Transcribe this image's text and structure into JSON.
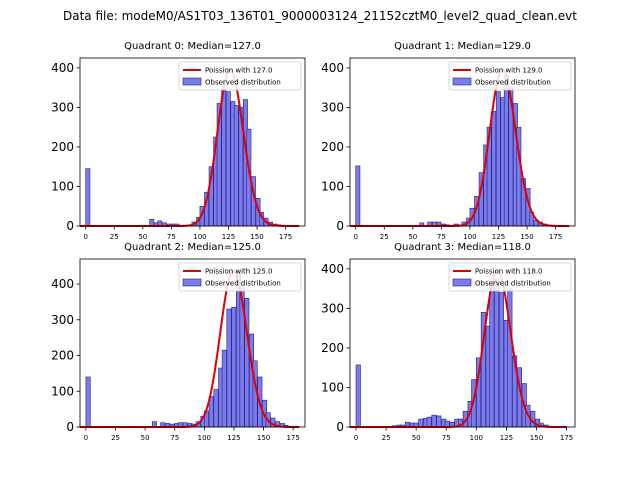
{
  "suptitle": "Data file: modeM0/AS1T03_136T01_9000003124_21152cztM0_level2_quad_clean.evt",
  "colors": {
    "bar_fill": "#7b7bea",
    "bar_edge": "#1f1f8c",
    "poisson_line": "#e00000",
    "axis": "#000000",
    "background": "#ffffff"
  },
  "chart_data": [
    {
      "type": "bar",
      "title": "Quadrant 0: Median=127.0",
      "median": 127.0,
      "xlim": [
        -5,
        192
      ],
      "ylim": [
        0,
        425
      ],
      "xticks": [
        0,
        25,
        50,
        75,
        100,
        125,
        150,
        175
      ],
      "yticks": [
        0,
        100,
        200,
        300,
        400
      ],
      "bin_width": 3.7,
      "bins": [
        [
          0,
          145
        ],
        [
          56,
          17
        ],
        [
          60,
          8
        ],
        [
          63,
          13
        ],
        [
          67,
          8
        ],
        [
          71,
          5
        ],
        [
          75,
          5
        ],
        [
          78,
          5
        ],
        [
          82,
          2
        ],
        [
          86,
          2
        ],
        [
          89,
          3
        ],
        [
          93,
          10
        ],
        [
          97,
          22
        ],
        [
          100,
          50
        ],
        [
          104,
          85
        ],
        [
          108,
          150
        ],
        [
          112,
          225
        ],
        [
          115,
          310
        ],
        [
          119,
          345
        ],
        [
          123,
          340
        ],
        [
          127,
          315
        ],
        [
          130,
          305
        ],
        [
          134,
          300
        ],
        [
          138,
          320
        ],
        [
          141,
          245
        ],
        [
          145,
          125
        ],
        [
          149,
          70
        ],
        [
          152,
          35
        ],
        [
          156,
          20
        ],
        [
          160,
          10
        ],
        [
          164,
          5
        ],
        [
          167,
          3
        ],
        [
          171,
          2
        ]
      ],
      "curve_range": [
        -5,
        187
      ],
      "legend": {
        "line": "Poission with 127.0",
        "bar": "Observed distribution"
      }
    },
    {
      "type": "bar",
      "title": "Quadrant 1: Median=129.0",
      "median": 129.0,
      "xlim": [
        -5,
        192
      ],
      "ylim": [
        0,
        425
      ],
      "xticks": [
        0,
        25,
        50,
        75,
        100,
        125,
        150,
        175
      ],
      "yticks": [
        0,
        100,
        200,
        300,
        400
      ],
      "bin_width": 3.7,
      "bins": [
        [
          0,
          152
        ],
        [
          56,
          8
        ],
        [
          63,
          10
        ],
        [
          67,
          10
        ],
        [
          71,
          10
        ],
        [
          75,
          5
        ],
        [
          78,
          3
        ],
        [
          82,
          2
        ],
        [
          86,
          5
        ],
        [
          89,
          3
        ],
        [
          93,
          10
        ],
        [
          97,
          20
        ],
        [
          100,
          45
        ],
        [
          104,
          75
        ],
        [
          108,
          135
        ],
        [
          112,
          205
        ],
        [
          115,
          250
        ],
        [
          119,
          290
        ],
        [
          123,
          340
        ],
        [
          127,
          325
        ],
        [
          130,
          380
        ],
        [
          134,
          350
        ],
        [
          138,
          310
        ],
        [
          141,
          250
        ],
        [
          145,
          120
        ],
        [
          149,
          95
        ],
        [
          152,
          35
        ],
        [
          156,
          15
        ],
        [
          160,
          10
        ],
        [
          164,
          5
        ],
        [
          167,
          3
        ],
        [
          171,
          2
        ],
        [
          175,
          1
        ]
      ],
      "curve_range": [
        -5,
        187
      ],
      "legend": {
        "line": "Poission with 129.0",
        "bar": "Observed distribution"
      }
    },
    {
      "type": "bar",
      "title": "Quadrant 2: Median=125.0",
      "median": 125.0,
      "xlim": [
        -5,
        185
      ],
      "ylim": [
        0,
        470
      ],
      "xticks": [
        0,
        25,
        50,
        75,
        100,
        125,
        150,
        175
      ],
      "yticks": [
        0,
        100,
        200,
        300,
        400
      ],
      "bin_width": 3.7,
      "bins": [
        [
          0,
          140
        ],
        [
          56,
          15
        ],
        [
          63,
          12
        ],
        [
          67,
          10
        ],
        [
          71,
          8
        ],
        [
          75,
          10
        ],
        [
          78,
          12
        ],
        [
          82,
          12
        ],
        [
          86,
          10
        ],
        [
          89,
          8
        ],
        [
          93,
          15
        ],
        [
          97,
          30
        ],
        [
          100,
          45
        ],
        [
          104,
          85
        ],
        [
          108,
          105
        ],
        [
          112,
          165
        ],
        [
          115,
          215
        ],
        [
          119,
          330
        ],
        [
          123,
          335
        ],
        [
          127,
          435
        ],
        [
          130,
          405
        ],
        [
          134,
          360
        ],
        [
          138,
          260
        ],
        [
          141,
          185
        ],
        [
          145,
          140
        ],
        [
          149,
          75
        ],
        [
          152,
          40
        ],
        [
          156,
          25
        ],
        [
          160,
          15
        ],
        [
          164,
          10
        ],
        [
          167,
          5
        ],
        [
          171,
          2
        ]
      ],
      "curve_range": [
        -5,
        180
      ],
      "legend": {
        "line": "Poission with 125.0",
        "bar": "Observed distribution"
      }
    },
    {
      "type": "bar",
      "title": "Quadrant 3: Median=118.0",
      "median": 118.0,
      "xlim": [
        -5,
        182
      ],
      "ylim": [
        0,
        425
      ],
      "xticks": [
        0,
        25,
        50,
        75,
        100,
        125,
        150,
        175
      ],
      "yticks": [
        0,
        100,
        200,
        300,
        400
      ],
      "bin_width": 3.7,
      "bins": [
        [
          0,
          157
        ],
        [
          30,
          3
        ],
        [
          34,
          5
        ],
        [
          37,
          5
        ],
        [
          41,
          12
        ],
        [
          45,
          10
        ],
        [
          48,
          10
        ],
        [
          52,
          20
        ],
        [
          56,
          22
        ],
        [
          59,
          25
        ],
        [
          63,
          30
        ],
        [
          67,
          28
        ],
        [
          71,
          20
        ],
        [
          74,
          15
        ],
        [
          78,
          12
        ],
        [
          82,
          20
        ],
        [
          85,
          20
        ],
        [
          89,
          40
        ],
        [
          93,
          65
        ],
        [
          96,
          120
        ],
        [
          100,
          175
        ],
        [
          104,
          290
        ],
        [
          108,
          255
        ],
        [
          111,
          360
        ],
        [
          115,
          375
        ],
        [
          119,
          340
        ],
        [
          123,
          270
        ],
        [
          126,
          350
        ],
        [
          130,
          180
        ],
        [
          134,
          150
        ],
        [
          138,
          110
        ],
        [
          141,
          55
        ],
        [
          145,
          40
        ],
        [
          149,
          20
        ],
        [
          152,
          10
        ],
        [
          156,
          5
        ],
        [
          160,
          2
        ]
      ],
      "curve_range": [
        -5,
        175
      ],
      "legend": {
        "line": "Poission with 118.0",
        "bar": "Observed distribution"
      }
    }
  ]
}
